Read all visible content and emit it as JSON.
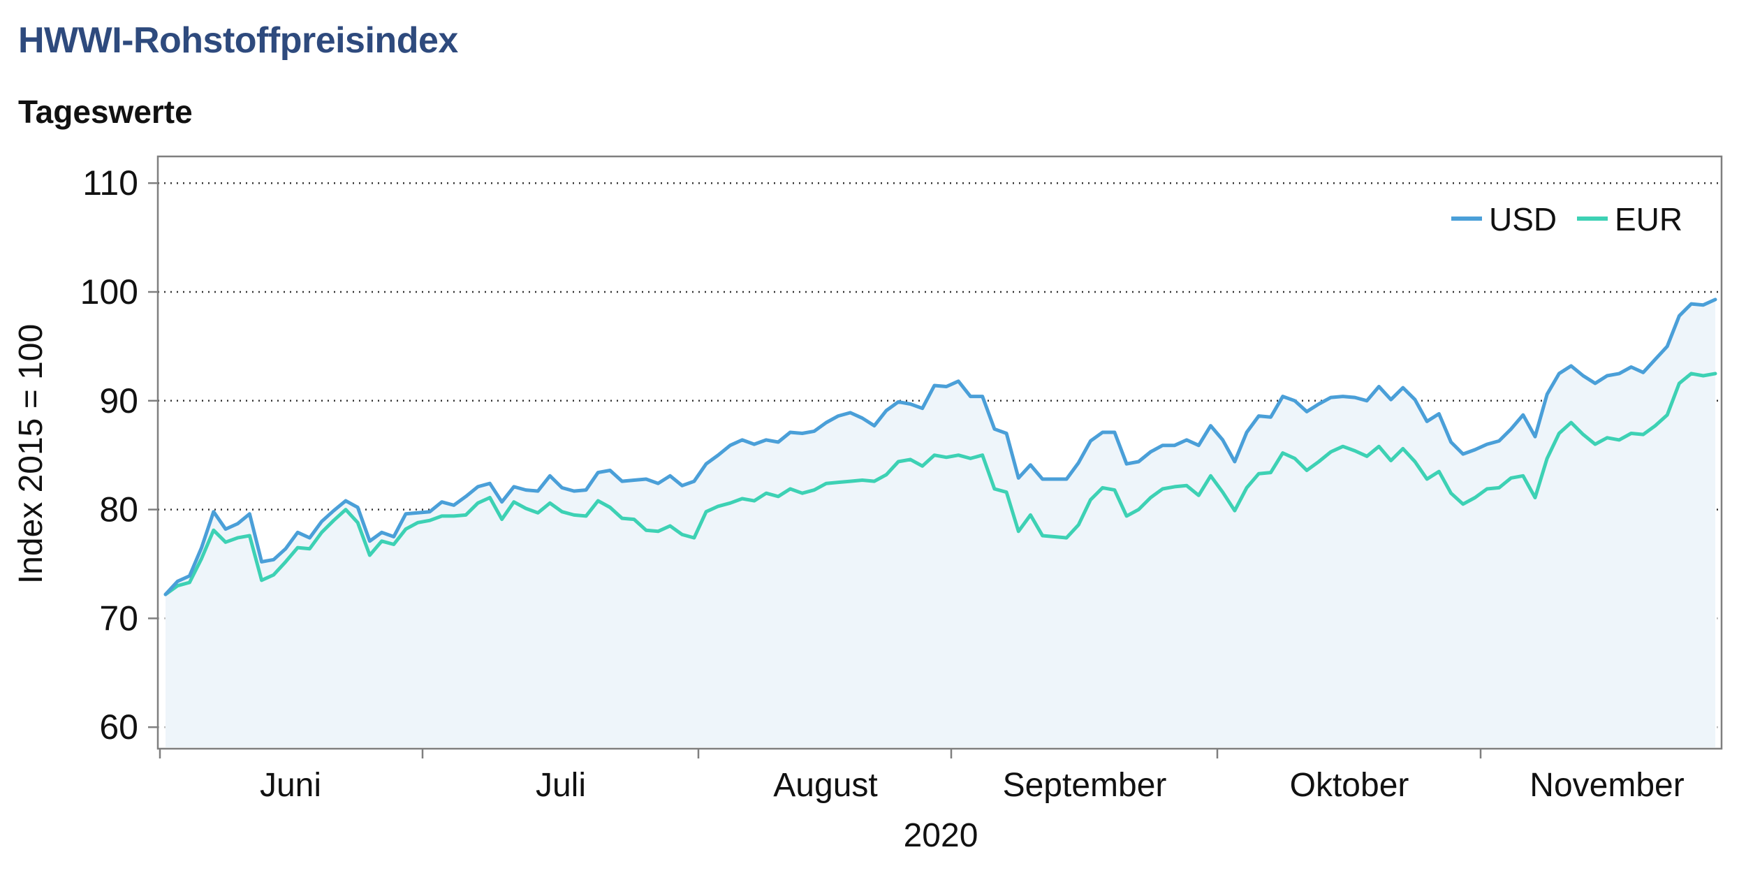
{
  "header": {
    "title": "HWWI-Rohstoffpreisindex",
    "subtitle": "Tageswerte"
  },
  "chart_data": {
    "type": "line",
    "title": "HWWI-Rohstoffpreisindex",
    "subtitle": "Tageswerte",
    "xlabel": "2020",
    "ylabel": "Index 2015 = 100",
    "ylim": [
      58,
      112
    ],
    "yticks": [
      60,
      70,
      80,
      90,
      100,
      110
    ],
    "grid": "horizontal-dotted",
    "legend_position": "top-right",
    "month_labels": [
      "Juni",
      "Juli",
      "August",
      "September",
      "Oktober",
      "November"
    ],
    "colors": {
      "USD": "#4a9fd8",
      "EUR": "#3dd1b4",
      "area": "#eef5fa",
      "axis": "#7f7f7f"
    },
    "series": [
      {
        "name": "USD",
        "color": "#4a9fd8",
        "values": [
          72.2,
          73.4,
          73.9,
          76.5,
          79.8,
          78.2,
          78.7,
          79.6,
          75.2,
          75.4,
          76.4,
          77.9,
          77.4,
          78.9,
          79.9,
          80.8,
          80.2,
          77.1,
          77.9,
          77.5,
          79.6,
          79.7,
          79.8,
          80.7,
          80.4,
          81.2,
          82.1,
          82.4,
          80.7,
          82.1,
          81.8,
          81.7,
          83.1,
          82.0,
          81.7,
          81.8,
          83.4,
          83.6,
          82.6,
          82.7,
          82.8,
          82.4,
          83.1,
          82.2,
          82.6,
          84.2,
          85.0,
          85.9,
          86.4,
          86.0,
          86.4,
          86.2,
          87.1,
          87.0,
          87.2,
          88.0,
          88.6,
          88.9,
          88.4,
          87.7,
          89.1,
          89.9,
          89.7,
          89.3,
          91.4,
          91.3,
          91.8,
          90.4,
          90.4,
          87.4,
          87.0,
          82.9,
          84.1,
          82.8,
          82.8,
          82.8,
          84.3,
          86.3,
          87.1,
          87.1,
          84.2,
          84.4,
          85.3,
          85.9,
          85.9,
          86.4,
          85.9,
          87.7,
          86.4,
          84.4,
          87.1,
          88.6,
          88.5,
          90.4,
          90.0,
          89.0,
          89.7,
          90.3,
          90.4,
          90.3,
          90.0,
          91.3,
          90.1,
          91.2,
          90.1,
          88.1,
          88.8,
          86.2,
          85.1,
          85.5,
          86.0,
          86.3,
          87.4,
          88.7,
          86.7,
          90.6,
          92.5,
          93.2,
          92.3,
          91.6,
          92.3,
          92.5,
          93.1,
          92.6,
          93.8,
          95.0,
          97.8,
          98.9,
          98.8,
          99.3
        ]
      },
      {
        "name": "EUR",
        "color": "#3dd1b4",
        "values": [
          72.2,
          73.0,
          73.3,
          75.5,
          78.1,
          77.0,
          77.4,
          77.6,
          73.5,
          74.0,
          75.2,
          76.5,
          76.4,
          77.9,
          79.0,
          80.0,
          78.8,
          75.8,
          77.1,
          76.8,
          78.2,
          78.8,
          79.0,
          79.4,
          79.4,
          79.5,
          80.6,
          81.1,
          79.1,
          80.7,
          80.1,
          79.7,
          80.6,
          79.8,
          79.5,
          79.4,
          80.8,
          80.2,
          79.2,
          79.1,
          78.1,
          78.0,
          78.5,
          77.7,
          77.4,
          79.8,
          80.3,
          80.6,
          81.0,
          80.8,
          81.5,
          81.2,
          81.9,
          81.5,
          81.8,
          82.4,
          82.5,
          82.6,
          82.7,
          82.6,
          83.2,
          84.4,
          84.6,
          84.0,
          85.0,
          84.8,
          85.0,
          84.7,
          85.0,
          81.9,
          81.6,
          78.0,
          79.5,
          77.6,
          77.5,
          77.4,
          78.6,
          80.9,
          82.0,
          81.8,
          79.4,
          80.0,
          81.1,
          81.9,
          82.1,
          82.2,
          81.3,
          83.1,
          81.6,
          79.9,
          82.0,
          83.3,
          83.4,
          85.2,
          84.7,
          83.6,
          84.4,
          85.3,
          85.8,
          85.4,
          84.9,
          85.8,
          84.5,
          85.6,
          84.4,
          82.8,
          83.5,
          81.5,
          80.5,
          81.1,
          81.9,
          82.0,
          82.9,
          83.1,
          81.1,
          84.7,
          87.0,
          88.0,
          86.9,
          86.0,
          86.6,
          86.4,
          87.0,
          86.9,
          87.7,
          88.7,
          91.6,
          92.5,
          92.3,
          92.5
        ]
      }
    ]
  }
}
